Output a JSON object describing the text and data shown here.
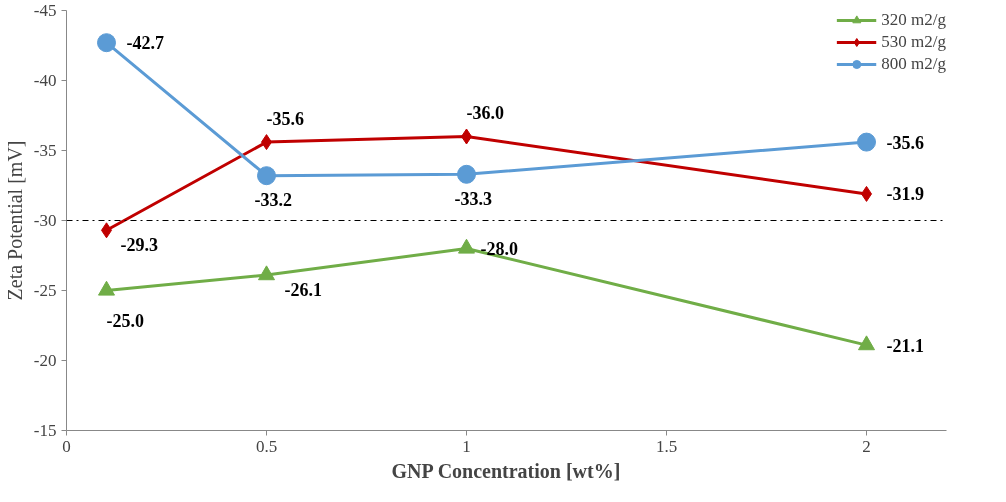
{
  "chart_data": {
    "type": "line",
    "xlabel": "GNP Concentration [wt%]",
    "ylabel": "Zeta Potential [mV]",
    "x": [
      0.1,
      0.5,
      1,
      2
    ],
    "xlim": [
      0,
      2.2
    ],
    "xticks": [
      0,
      0.5,
      1,
      1.5,
      2
    ],
    "ylim": [
      -15,
      -45
    ],
    "yticks": [
      -15,
      -20,
      -25,
      -30,
      -35,
      -40,
      -45
    ],
    "grid": false,
    "legend": "top right",
    "line_style": "solid",
    "ref_lines": [
      {
        "axis": "y",
        "value": -30,
        "color": "#000000",
        "line_style": "dashdot"
      }
    ],
    "series": [
      {
        "name": "320 m2/g",
        "color": "#70ad47",
        "marker": "triangle",
        "values": [
          -25.0,
          -26.1,
          -28.0,
          -21.1
        ],
        "value_labels": [
          "-25.0",
          "-26.1",
          "-28.0",
          "-21.1"
        ]
      },
      {
        "name": "530 m2/g",
        "color": "#c00000",
        "marker": "diamond",
        "values": [
          -29.3,
          -35.6,
          -36.0,
          -31.9
        ],
        "value_labels": [
          "-29.3",
          "-35.6",
          "-36.0",
          "-31.9"
        ]
      },
      {
        "name": "800 m2/g",
        "color": "#5b9bd5",
        "marker": "circle",
        "values": [
          -42.7,
          -33.2,
          -33.3,
          -35.6
        ],
        "value_labels": [
          "-42.7",
          "-33.2",
          "-33.3",
          "-35.6"
        ]
      }
    ]
  }
}
